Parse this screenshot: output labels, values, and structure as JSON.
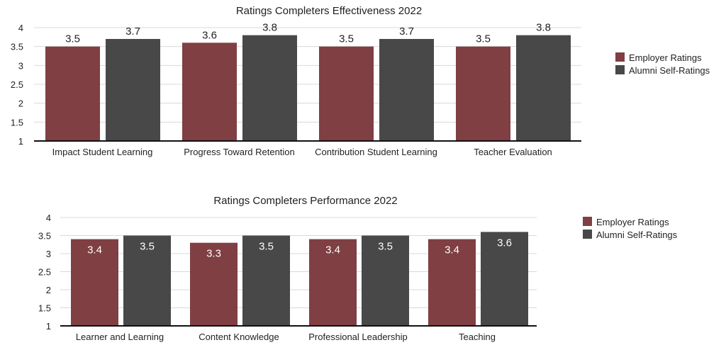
{
  "colors": {
    "employer": "#7f3f43",
    "alumni": "#484848"
  },
  "chart_data": [
    {
      "type": "bar",
      "title": "Ratings Completers Effectiveness 2022",
      "categories": [
        "Impact Student Learning",
        "Progress Toward Retention",
        "Contribution Student Learning",
        "Teacher Evaluation"
      ],
      "series": [
        {
          "name": "Employer Ratings",
          "values": [
            3.5,
            3.6,
            3.5,
            3.5
          ]
        },
        {
          "name": "Alumni Self-Ratings",
          "values": [
            3.7,
            3.8,
            3.7,
            3.8
          ]
        }
      ],
      "ylim": [
        1,
        4
      ],
      "yticks": [
        "1",
        "1.5",
        "2",
        "2.5",
        "3",
        "3.5",
        "4"
      ],
      "data_labels": "above",
      "grid": true,
      "legend": "right"
    },
    {
      "type": "bar",
      "title": "Ratings Completers Performance 2022",
      "categories": [
        "Learner and Learning",
        "Content Knowledge",
        "Professional Leadership",
        "Teaching"
      ],
      "series": [
        {
          "name": "Employer Ratings",
          "values": [
            3.4,
            3.3,
            3.4,
            3.4
          ]
        },
        {
          "name": "Alumni Self-Ratings",
          "values": [
            3.5,
            3.5,
            3.5,
            3.6
          ]
        }
      ],
      "ylim": [
        1,
        4
      ],
      "yticks": [
        "1",
        "1.5",
        "2",
        "2.5",
        "3",
        "3.5",
        "4"
      ],
      "data_labels": "inside",
      "grid": true,
      "legend": "right"
    }
  ]
}
